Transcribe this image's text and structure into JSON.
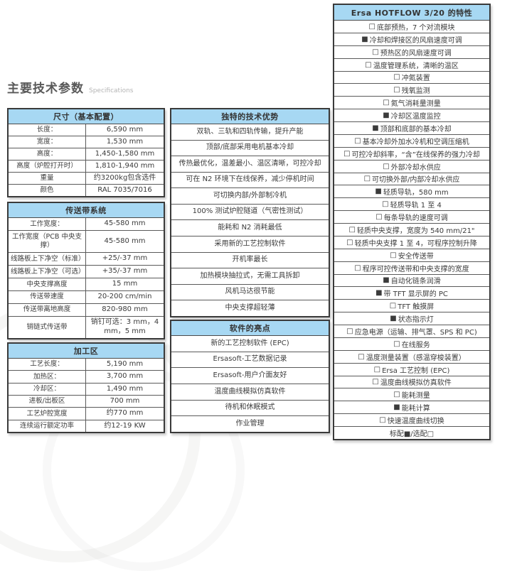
{
  "page": {
    "title": "主要技术参数",
    "subtitle": "Specifications"
  },
  "colors": {
    "header_bg": "#a7d8f3",
    "border": "#3a3a3a",
    "text": "#3b3b3b"
  },
  "left_tables": [
    {
      "header": "尺寸（基本配置）",
      "rows": [
        {
          "label": "长度：",
          "value": "6,590 mm"
        },
        {
          "label": "宽度：",
          "value": "1,530 mm"
        },
        {
          "label": "高度：",
          "value": "1,450-1,580 mm"
        },
        {
          "label": "高度（炉腔打开时）",
          "value": "1,810-1,940 mm"
        },
        {
          "label": "重量",
          "value": "约3200kg包含选件"
        },
        {
          "label": "颜色",
          "value": "RAL 7035/7016"
        }
      ]
    },
    {
      "header": "传送带系统",
      "rows": [
        {
          "label": "工作宽度：",
          "value": "45-580 mm"
        },
        {
          "label": "工作宽度（PCB 中央支撑）",
          "value": "45-580 mm"
        },
        {
          "label": "线路板上下净空（标准）",
          "value": "+25/-37 mm"
        },
        {
          "label": "线路板上下净空（可选）",
          "value": "+35/-37 mm"
        },
        {
          "label": "中央支撑高度",
          "value": "15 mm"
        },
        {
          "label": "传送带速度",
          "value": "20-200 cm/min"
        },
        {
          "label": "传送带离地高度",
          "value": "820-980 mm"
        },
        {
          "label": "销链式传送带",
          "value": "销钉可选：3 mm，4 mm，5 mm"
        }
      ]
    },
    {
      "header": "加工区",
      "rows": [
        {
          "label": "工艺长度：",
          "value": "5,190 mm"
        },
        {
          "label": "加热区：",
          "value": "3,700 mm"
        },
        {
          "label": "冷却区：",
          "value": "1,490 mm"
        },
        {
          "label": "进板/出板区",
          "value": "700 mm"
        },
        {
          "label": "工艺炉腔宽度",
          "value": "约770 mm"
        },
        {
          "label": "连续运行额定功率",
          "value": "约12-19 KW"
        }
      ]
    }
  ],
  "middle_tables": [
    {
      "header": "独特的技术优势",
      "rows": [
        "双轨、三轨和四轨传输，提升产能",
        "顶部/底部采用电机基本冷却",
        "传热最优化，温差最小、温区清晰，可控冷却",
        "可在 N2 环境下在线保养，减少停机时间",
        "可切换内部/外部制冷机",
        "100% 测试炉腔隧道（气密性测试）",
        "能耗和 N2 消耗最低",
        "采用新的工艺控制软件",
        "开机率最长",
        "加热模块抽拉式，无需工具拆卸",
        "风机马达很节能",
        "中央支撑超轻薄"
      ]
    },
    {
      "header": "软件的亮点",
      "rows": [
        "新的工艺控制软件 (EPC)",
        "Ersasoft-工艺数据记录",
        "Ersasoft-用户介面友好",
        "温度曲线模拟仿真软件",
        "待机和休眠模式",
        "作业管理"
      ]
    }
  ],
  "features_table": {
    "header": "Ersa HOTFLOW 3/20 的特性",
    "checkbox_checked": "■",
    "checkbox_unchecked": "□",
    "items": [
      {
        "checked": false,
        "text": "底部预热，7 个对流模块"
      },
      {
        "checked": true,
        "text": "冷却和焊接区的风扇速度可调"
      },
      {
        "checked": false,
        "text": "预热区的风扇速度可调"
      },
      {
        "checked": false,
        "text": "温度管理系统，清晰的温区"
      },
      {
        "checked": false,
        "text": "冲氮装置"
      },
      {
        "checked": false,
        "text": "残氧监测"
      },
      {
        "checked": false,
        "text": "氮气消耗量测量"
      },
      {
        "checked": true,
        "text": "冷却区温度监控"
      },
      {
        "checked": true,
        "text": "顶部和底部的基本冷却"
      },
      {
        "checked": false,
        "text": "基本冷却外加水冷机和空调压缩机"
      },
      {
        "checked": false,
        "text": "可控冷却斜率，“含”在线保养的强力冷却"
      },
      {
        "checked": false,
        "text": "外部冷却水供应"
      },
      {
        "checked": false,
        "text": "可切换外部/内部冷却水供应"
      },
      {
        "checked": true,
        "text": "轻质导轨，580 mm"
      },
      {
        "checked": false,
        "text": "轻质导轨 1 至 4"
      },
      {
        "checked": false,
        "text": "每条导轨的速度可调"
      },
      {
        "checked": false,
        "text": "轻质中央支撑，宽度为 540 mm/21\""
      },
      {
        "checked": false,
        "text": "轻质中央支撑 1 至 4，可程序控制升降"
      },
      {
        "checked": false,
        "text": "安全传送带"
      },
      {
        "checked": false,
        "text": "程序可控传送带和中央支撑的宽度"
      },
      {
        "checked": true,
        "text": "自动化链条润滑"
      },
      {
        "checked": true,
        "text": "带 TFT 显示屏的 PC"
      },
      {
        "checked": false,
        "text": "TFT 触摸屏"
      },
      {
        "checked": true,
        "text": "状态指示灯"
      },
      {
        "checked": false,
        "text": "应急电源（运输、排气罩、SPS 和 PC)"
      },
      {
        "checked": false,
        "text": "在线服务"
      },
      {
        "checked": false,
        "text": "温度测量装置（感温穿梭装置）"
      },
      {
        "checked": false,
        "text": "Ersa 工艺控制 (EPC)"
      },
      {
        "checked": false,
        "text": "温度曲线模拟仿真软件"
      },
      {
        "checked": false,
        "text": "能耗测量"
      },
      {
        "checked": true,
        "text": "能耗计算"
      },
      {
        "checked": false,
        "text": "快速温度曲线切换"
      }
    ],
    "legend": "标配■/选配□"
  }
}
